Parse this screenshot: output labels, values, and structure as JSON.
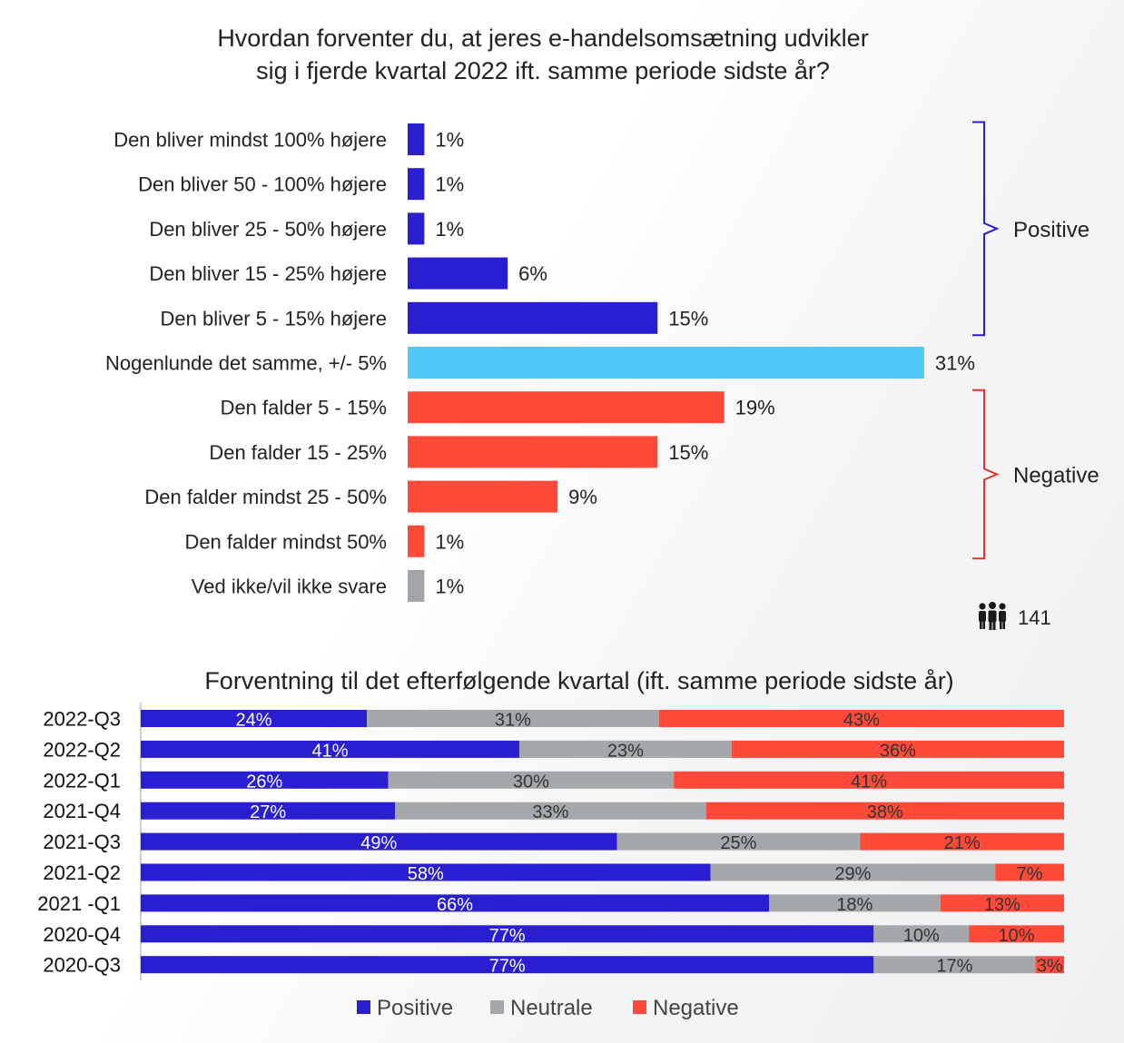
{
  "colors": {
    "positive": "#2a1fd0",
    "neutral_bar": "#4fc8f8",
    "negative": "#ff4a3a",
    "unknown": "#a3a6a8",
    "stack_neutral": "#a4a8aa",
    "positive_brace": "#2a1fd0",
    "negative_brace": "#e8302a"
  },
  "respondents": {
    "count": "141",
    "icon": "people-icon"
  },
  "chart_data": [
    {
      "type": "bar",
      "orientation": "horizontal",
      "title_lines": [
        "Hvordan forventer du, at jeres e-handelsomsætning udvikler",
        "sig i fjerde kvartal 2022 ift. samme periode sidste år?"
      ],
      "categories": [
        "Den bliver mindst 100% højere",
        "Den bliver 50 - 100% højere",
        "Den bliver 25 - 50% højere",
        "Den bliver 15 - 25% højere",
        "Den bliver 5 - 15% højere",
        "Nogenlunde det samme, +/- 5%",
        "Den falder 5 - 15%",
        "Den falder 15 - 25%",
        "Den falder mindst 25 - 50%",
        "Den falder mindst 50%",
        "Ved ikke/vil ikke svare"
      ],
      "values": [
        1,
        1,
        1,
        6,
        15,
        31,
        19,
        15,
        9,
        1,
        1
      ],
      "value_labels": [
        "1%",
        "1%",
        "1%",
        "6%",
        "15%",
        "31%",
        "19%",
        "15%",
        "9%",
        "1%",
        "1%"
      ],
      "bar_groups": [
        "positive",
        "positive",
        "positive",
        "positive",
        "positive",
        "neutral_bar",
        "negative",
        "negative",
        "negative",
        "negative",
        "unknown"
      ],
      "brackets": [
        {
          "label": "Positive",
          "from": 0,
          "to": 4
        },
        {
          "label": "Negative",
          "from": 6,
          "to": 9
        }
      ]
    },
    {
      "type": "bar",
      "orientation": "horizontal",
      "stacked": true,
      "title": "Forventning til det efterfølgende kvartal (ift. samme periode sidste år)",
      "categories": [
        "2022-Q3",
        "2022-Q2",
        "2022-Q1",
        "2021-Q4",
        "2021-Q3",
        "2021-Q2",
        "2021 -Q1",
        "2020-Q4",
        "2020-Q3"
      ],
      "series": [
        {
          "name": "Positive",
          "values": [
            24,
            41,
            26,
            27,
            49,
            58,
            66,
            77,
            77
          ]
        },
        {
          "name": "Neutrale",
          "values": [
            31,
            23,
            30,
            33,
            25,
            29,
            18,
            10,
            17
          ]
        },
        {
          "name": "Negative",
          "values": [
            43,
            36,
            41,
            38,
            21,
            7,
            13,
            10,
            3
          ]
        }
      ],
      "legend_position": "bottom"
    }
  ]
}
